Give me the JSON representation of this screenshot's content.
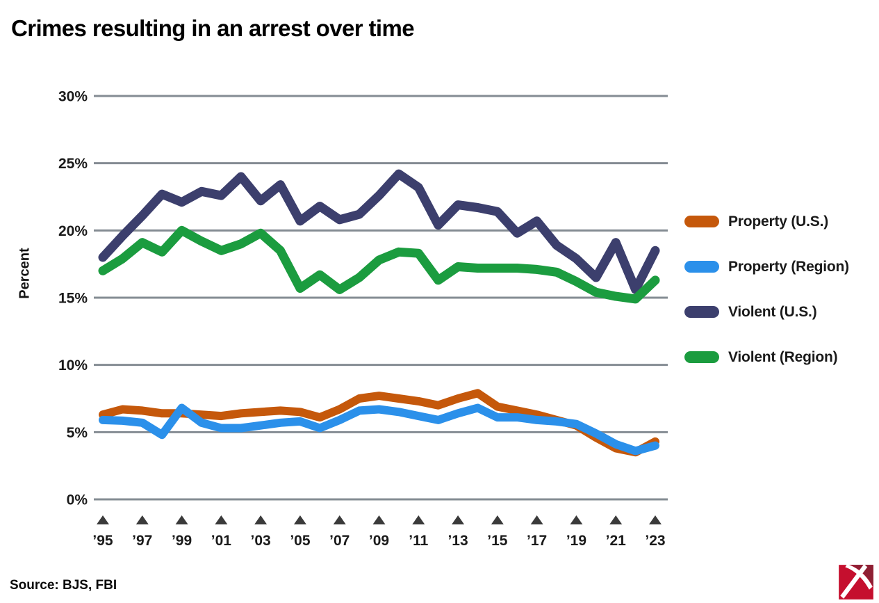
{
  "title": "Crimes resulting in an arrest over time",
  "source": "Source: BJS, FBI",
  "y_axis": {
    "label": "Percent",
    "tick_values": [
      0,
      5,
      10,
      15,
      20,
      25,
      30
    ],
    "tick_labels": [
      "0%",
      "5%",
      "10%",
      "15%",
      "20%",
      "25%",
      "30%"
    ]
  },
  "x_axis": {
    "tick_years": [
      1995,
      1997,
      1999,
      2001,
      2003,
      2005,
      2007,
      2009,
      2011,
      2013,
      2015,
      2017,
      2019,
      2021,
      2023
    ],
    "tick_labels": [
      "’95",
      "’97",
      "’99",
      "’01",
      "’03",
      "’05",
      "’07",
      "’09",
      "’11",
      "’13",
      "’15",
      "’17",
      "’19",
      "’21",
      "’23"
    ]
  },
  "colors": {
    "property_us": "#c5580b",
    "property_region": "#2b90ea",
    "violent_us": "#3c3f6d",
    "violent_region": "#1b9c3f",
    "gridline": "#848c93",
    "tick_triangle": "#3a3a3a",
    "axis_text": "#1a1a1a",
    "logo_red": "#c50f2e",
    "logo_dark_red": "#8e1f33"
  },
  "legend": {
    "items": [
      {
        "label": "Property (U.S.)",
        "color_key": "property_us"
      },
      {
        "label": "Property (Region)",
        "color_key": "property_region"
      },
      {
        "label": "Violent (U.S.)",
        "color_key": "violent_us"
      },
      {
        "label": "Violent (Region)",
        "color_key": "violent_region"
      }
    ]
  },
  "chart_data": {
    "type": "line",
    "title": "Crimes resulting in an arrest over time",
    "xlabel": "",
    "ylabel": "Percent",
    "ylim": [
      0,
      30
    ],
    "grid": true,
    "legend_position": "right",
    "x": [
      1995,
      1996,
      1997,
      1998,
      1999,
      2000,
      2001,
      2002,
      2003,
      2004,
      2005,
      2006,
      2007,
      2008,
      2009,
      2010,
      2011,
      2012,
      2013,
      2014,
      2015,
      2016,
      2017,
      2018,
      2019,
      2020,
      2021,
      2022,
      2023
    ],
    "series": [
      {
        "name": "Property (U.S.)",
        "color_key": "property_us",
        "width": 12,
        "values": [
          6.3,
          6.7,
          6.6,
          6.4,
          6.4,
          6.3,
          6.2,
          6.4,
          6.5,
          6.6,
          6.5,
          6.1,
          6.7,
          7.5,
          7.7,
          7.5,
          7.3,
          7.0,
          7.5,
          7.9,
          6.9,
          6.6,
          6.3,
          5.9,
          5.5,
          4.6,
          3.8,
          3.5,
          4.3
        ]
      },
      {
        "name": "Property (Region)",
        "color_key": "property_region",
        "width": 12,
        "values": [
          5.9,
          5.85,
          5.7,
          4.8,
          6.8,
          5.7,
          5.3,
          5.3,
          5.5,
          5.7,
          5.8,
          5.3,
          5.9,
          6.6,
          6.7,
          6.5,
          6.2,
          5.9,
          6.4,
          6.8,
          6.1,
          6.1,
          5.9,
          5.8,
          5.6,
          4.9,
          4.1,
          3.6,
          4.0
        ]
      },
      {
        "name": "Violent (U.S.)",
        "color_key": "violent_us",
        "width": 13,
        "values": [
          18.0,
          19.6,
          21.1,
          22.7,
          22.1,
          22.9,
          22.6,
          24.0,
          22.2,
          23.4,
          20.7,
          21.8,
          20.8,
          21.2,
          22.6,
          24.2,
          23.2,
          20.4,
          21.9,
          21.7,
          21.4,
          19.8,
          20.7,
          18.9,
          17.9,
          16.5,
          19.1,
          15.6,
          18.5
        ]
      },
      {
        "name": "Violent (Region)",
        "color_key": "violent_region",
        "width": 13,
        "values": [
          17.0,
          17.9,
          19.1,
          18.4,
          20.0,
          19.2,
          18.5,
          19.0,
          19.8,
          18.5,
          15.7,
          16.7,
          15.6,
          16.5,
          17.8,
          18.4,
          18.3,
          16.3,
          17.3,
          17.2,
          17.2,
          17.2,
          17.1,
          16.9,
          16.2,
          15.4,
          15.1,
          14.9,
          16.3
        ]
      }
    ]
  }
}
